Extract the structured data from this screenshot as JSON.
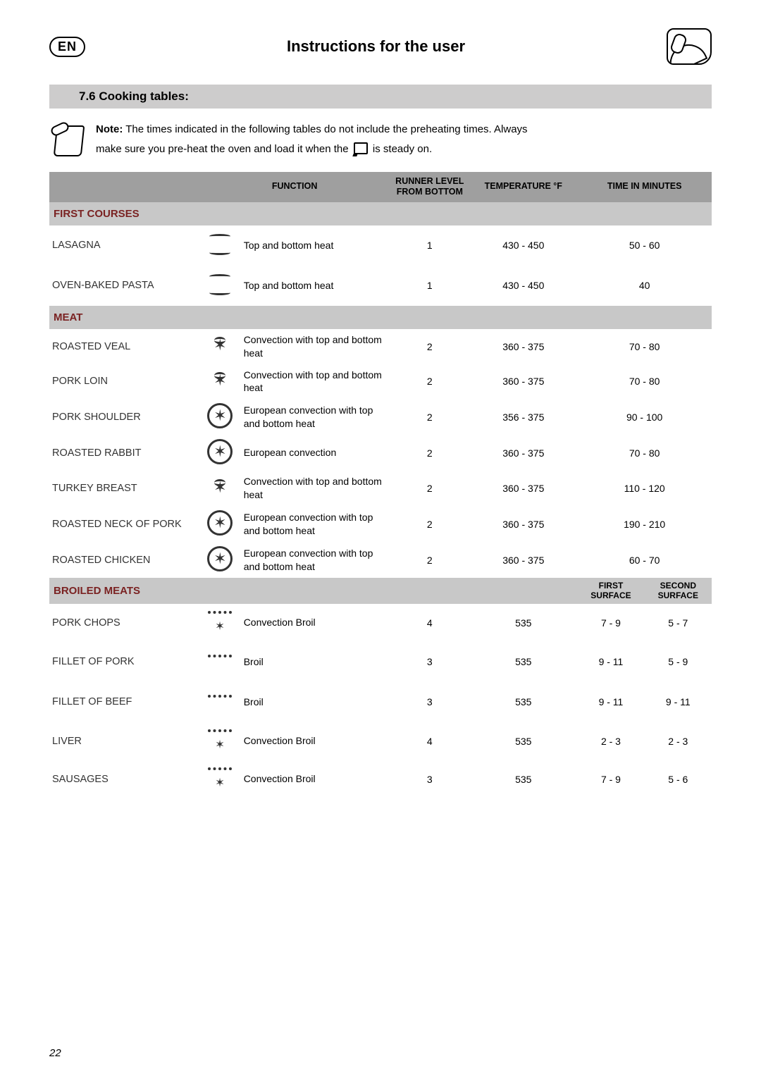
{
  "page": {
    "lang_badge": "EN",
    "header_title": "Instructions for the user",
    "page_number": "22"
  },
  "section": {
    "number_title": "7.6   Cooking tables:"
  },
  "note": {
    "label": "Note:",
    "line1": " The times indicated in the following tables do not include the preheating times. Always",
    "line2_a": "make sure you pre-heat the oven and load it when the ",
    "line2_b": " is steady on."
  },
  "table": {
    "headers": {
      "function": "FUNCTION",
      "level": "RUNNER LEVEL FROM BOTTOM",
      "temp": "TEMPERATURE °F",
      "time": "TIME IN MINUTES"
    },
    "groups": {
      "first_courses": "FIRST COURSES",
      "meat": "MEAT",
      "broiled": "BROILED MEATS",
      "broiled_first": "FIRST SURFACE",
      "broiled_second": "SECOND SURFACE"
    },
    "rows": {
      "lasagna": {
        "label": "LASAGNA",
        "func": "Top and bottom heat",
        "level": "1",
        "temp": "430 - 450",
        "time": "50 - 60"
      },
      "pasta": {
        "label": "OVEN-BAKED PASTA",
        "func": "Top and bottom heat",
        "level": "1",
        "temp": "430 - 450",
        "time": "40"
      },
      "veal": {
        "label": "ROASTED VEAL",
        "func": "Convection with top and bottom heat",
        "level": "2",
        "temp": "360 - 375",
        "time": "70 - 80"
      },
      "porkloin": {
        "label": "PORK LOIN",
        "func": "Convection with top and bottom heat",
        "level": "2",
        "temp": "360 - 375",
        "time": "70 - 80"
      },
      "porkshoulder": {
        "label": "PORK SHOULDER",
        "func": "European convection with top and bottom heat",
        "level": "2",
        "temp": "356 - 375",
        "time": "90 - 100"
      },
      "rabbit": {
        "label": "ROASTED RABBIT",
        "func": "European convection",
        "level": "2",
        "temp": "360 - 375",
        "time": "70 - 80"
      },
      "turkey": {
        "label": "TURKEY BREAST",
        "func": "Convection with top and bottom heat",
        "level": "2",
        "temp": "360 - 375",
        "time": "110 - 120"
      },
      "neckpork": {
        "label": "ROASTED NECK OF PORK",
        "func": "European convection with top and bottom heat",
        "level": "2",
        "temp": "360 - 375",
        "time": "190 - 210"
      },
      "chicken": {
        "label": "ROASTED CHICKEN",
        "func": "European convection with top and bottom heat",
        "level": "2",
        "temp": "360 - 375",
        "time": "60 - 70"
      },
      "porkchops": {
        "label": "PORK CHOPS",
        "func": "Convection Broil",
        "level": "4",
        "temp": "535",
        "t1": "7 - 9",
        "t2": "5 - 7"
      },
      "filletpork": {
        "label": "FILLET OF PORK",
        "func": "Broil",
        "level": "3",
        "temp": "535",
        "t1": "9 - 11",
        "t2": "5 - 9"
      },
      "filletbeef": {
        "label": "FILLET OF BEEF",
        "func": "Broil",
        "level": "3",
        "temp": "535",
        "t1": "9 - 11",
        "t2": "9 - 11"
      },
      "liver": {
        "label": "LIVER",
        "func": "Convection Broil",
        "level": "4",
        "temp": "535",
        "t1": "2 - 3",
        "t2": "2 - 3"
      },
      "sausages": {
        "label": "SAUSAGES",
        "func": "Convection Broil",
        "level": "3",
        "temp": "535",
        "t1": "7 - 9",
        "t2": "5 - 6"
      }
    }
  },
  "style": {
    "colors": {
      "header_grey": "#9f9f9f",
      "section_grey": "#c8c8c8",
      "section_title_bar": "#cdcccc",
      "text": "#000000",
      "section_red": "#7a2222"
    },
    "fonts": {
      "base_size": 14,
      "title_size": 22
    }
  }
}
